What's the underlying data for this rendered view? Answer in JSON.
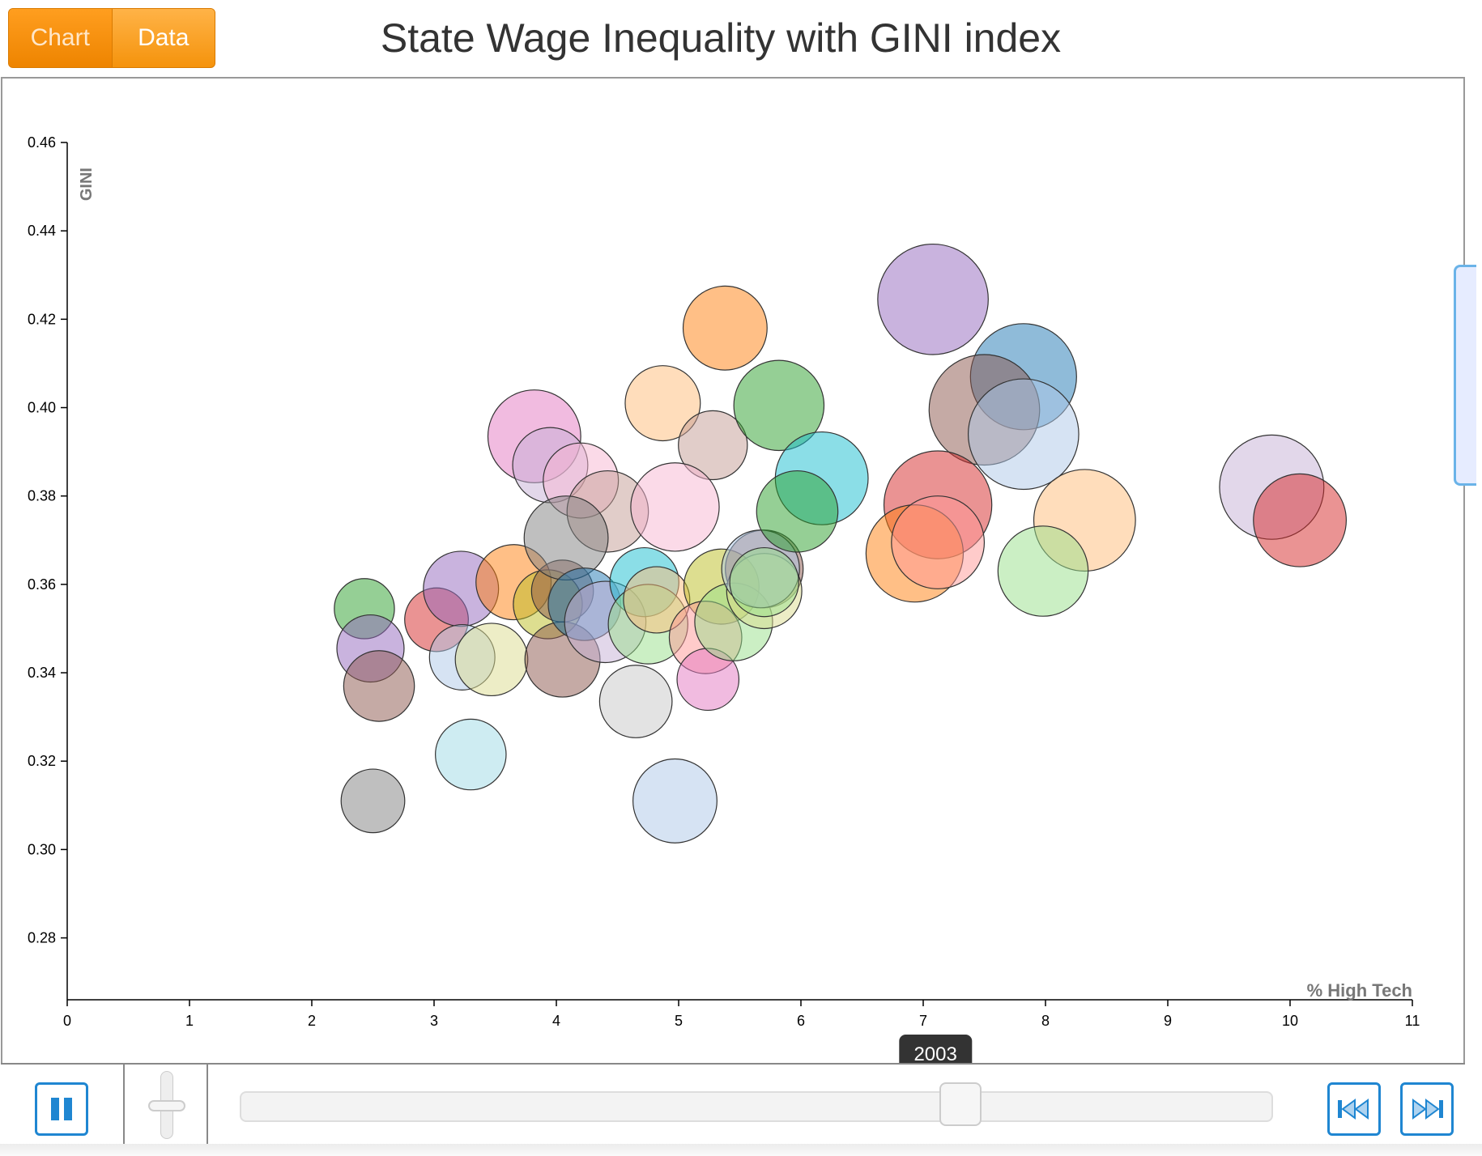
{
  "toolbar": {
    "chart_label": "Chart",
    "data_label": "Data"
  },
  "title": "State Wage Inequality with GINI index",
  "timeline": {
    "current_year": "2003",
    "position_fraction": 0.706
  },
  "speed": {
    "level_fraction": 0.5
  },
  "colors": {
    "toggle": "#f39200",
    "button": "#1f86d1",
    "axis": "#000000"
  },
  "icons": {
    "play": "pause-icon",
    "prev": "rewind-icon",
    "next": "fast-forward-icon"
  },
  "chart_data": {
    "type": "scatter",
    "title": "State Wage Inequality with GINI index",
    "xlabel": "% High Tech",
    "ylabel": "GINI",
    "xlim": [
      0,
      11
    ],
    "ylim": [
      0.266,
      0.46
    ],
    "xticks": [
      "0",
      "1",
      "2",
      "3",
      "4",
      "5",
      "6",
      "7",
      "8",
      "9",
      "10",
      "11"
    ],
    "yticks": [
      "0.28",
      "0.30",
      "0.32",
      "0.34",
      "0.36",
      "0.38",
      "0.40",
      "0.42",
      "0.44",
      "0.46"
    ],
    "grid": false,
    "points": [
      {
        "x": 2.43,
        "y": 0.3545,
        "r": 0.0068,
        "color": "#2ca02c"
      },
      {
        "x": 2.48,
        "y": 0.3455,
        "r": 0.0076,
        "color": "#9467bd"
      },
      {
        "x": 2.55,
        "y": 0.337,
        "r": 0.008,
        "color": "#8c564b"
      },
      {
        "x": 2.5,
        "y": 0.311,
        "r": 0.0072,
        "color": "#7f7f7f"
      },
      {
        "x": 3.02,
        "y": 0.352,
        "r": 0.0072,
        "color": "#d62728"
      },
      {
        "x": 3.22,
        "y": 0.359,
        "r": 0.0085,
        "color": "#9467bd"
      },
      {
        "x": 3.23,
        "y": 0.3435,
        "r": 0.0074,
        "color": "#aec7e8"
      },
      {
        "x": 3.47,
        "y": 0.343,
        "r": 0.0082,
        "color": "#dbdb8d"
      },
      {
        "x": 3.3,
        "y": 0.3215,
        "r": 0.008,
        "color": "#9edae5"
      },
      {
        "x": 3.65,
        "y": 0.3605,
        "r": 0.0085,
        "color": "#ff7f0e"
      },
      {
        "x": 3.93,
        "y": 0.3555,
        "r": 0.0078,
        "color": "#bcbd22"
      },
      {
        "x": 4.05,
        "y": 0.3585,
        "r": 0.007,
        "color": "#8c564b"
      },
      {
        "x": 4.05,
        "y": 0.343,
        "r": 0.0085,
        "color": "#8c564b"
      },
      {
        "x": 3.82,
        "y": 0.3935,
        "r": 0.0105,
        "color": "#e377c2"
      },
      {
        "x": 3.95,
        "y": 0.387,
        "r": 0.0085,
        "color": "#c5b0d5"
      },
      {
        "x": 4.2,
        "y": 0.3835,
        "r": 0.0085,
        "color": "#f7b6d2"
      },
      {
        "x": 4.42,
        "y": 0.3765,
        "r": 0.0092,
        "color": "#c49c94"
      },
      {
        "x": 4.08,
        "y": 0.3705,
        "r": 0.0095,
        "color": "#7f7f7f"
      },
      {
        "x": 4.23,
        "y": 0.3555,
        "r": 0.0082,
        "color": "#1f77b4"
      },
      {
        "x": 4.4,
        "y": 0.3515,
        "r": 0.0092,
        "color": "#c5b0d5"
      },
      {
        "x": 4.72,
        "y": 0.3605,
        "r": 0.0078,
        "color": "#17becf"
      },
      {
        "x": 4.75,
        "y": 0.351,
        "r": 0.009,
        "color": "#98df8a"
      },
      {
        "x": 4.82,
        "y": 0.3565,
        "r": 0.0075,
        "color": "#ffbb78"
      },
      {
        "x": 4.65,
        "y": 0.3335,
        "r": 0.0082,
        "color": "#c7c7c7"
      },
      {
        "x": 4.97,
        "y": 0.311,
        "r": 0.0095,
        "color": "#aec7e8"
      },
      {
        "x": 4.87,
        "y": 0.401,
        "r": 0.0085,
        "color": "#ffbb78"
      },
      {
        "x": 5.38,
        "y": 0.418,
        "r": 0.0095,
        "color": "#ff7f0e"
      },
      {
        "x": 5.28,
        "y": 0.3915,
        "r": 0.0078,
        "color": "#c49c94"
      },
      {
        "x": 4.97,
        "y": 0.3775,
        "r": 0.01,
        "color": "#f7b6d2"
      },
      {
        "x": 5.35,
        "y": 0.3595,
        "r": 0.0085,
        "color": "#bcbd22"
      },
      {
        "x": 5.22,
        "y": 0.348,
        "r": 0.0082,
        "color": "#ff9896"
      },
      {
        "x": 5.24,
        "y": 0.3385,
        "r": 0.007,
        "color": "#e377c2"
      },
      {
        "x": 5.45,
        "y": 0.3515,
        "r": 0.0088,
        "color": "#98df8a"
      },
      {
        "x": 5.7,
        "y": 0.3635,
        "r": 0.0088,
        "color": "#8c564b"
      },
      {
        "x": 5.7,
        "y": 0.3585,
        "r": 0.0085,
        "color": "#dbdb8d"
      },
      {
        "x": 5.67,
        "y": 0.3635,
        "r": 0.0088,
        "color": "#aec7e8"
      },
      {
        "x": 5.7,
        "y": 0.3605,
        "r": 0.0078,
        "color": "#98df8a"
      },
      {
        "x": 5.82,
        "y": 0.4005,
        "r": 0.0102,
        "color": "#2ca02c"
      },
      {
        "x": 6.17,
        "y": 0.384,
        "r": 0.0105,
        "color": "#17becf"
      },
      {
        "x": 5.97,
        "y": 0.3765,
        "r": 0.0092,
        "color": "#2ca02c"
      },
      {
        "x": 7.08,
        "y": 0.4245,
        "r": 0.0125,
        "color": "#9467bd"
      },
      {
        "x": 7.82,
        "y": 0.407,
        "r": 0.012,
        "color": "#1f77b4"
      },
      {
        "x": 7.5,
        "y": 0.3995,
        "r": 0.0125,
        "color": "#8c564b"
      },
      {
        "x": 7.82,
        "y": 0.394,
        "r": 0.0125,
        "color": "#aec7e8"
      },
      {
        "x": 7.12,
        "y": 0.378,
        "r": 0.0122,
        "color": "#d62728"
      },
      {
        "x": 6.93,
        "y": 0.367,
        "r": 0.011,
        "color": "#ff7f0e"
      },
      {
        "x": 7.12,
        "y": 0.3695,
        "r": 0.0105,
        "color": "#ff9896"
      },
      {
        "x": 8.32,
        "y": 0.3745,
        "r": 0.0115,
        "color": "#ffbb78"
      },
      {
        "x": 7.98,
        "y": 0.363,
        "r": 0.0102,
        "color": "#98df8a"
      },
      {
        "x": 9.85,
        "y": 0.382,
        "r": 0.0118,
        "color": "#c5b0d5"
      },
      {
        "x": 10.08,
        "y": 0.3745,
        "r": 0.0105,
        "color": "#d62728"
      }
    ]
  }
}
